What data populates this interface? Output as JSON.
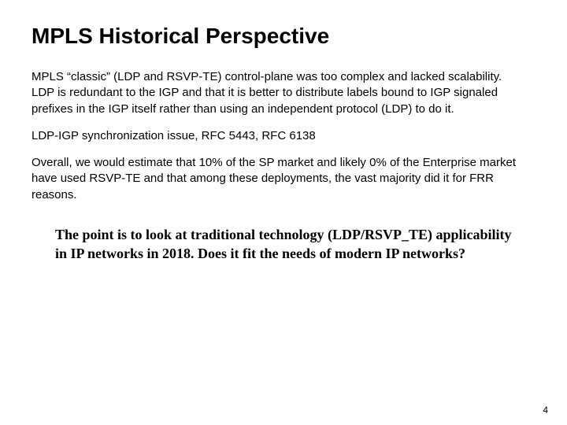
{
  "title": "MPLS Historical Perspective",
  "title_fontsize": 28,
  "paragraphs": [
    "MPLS “classic” (LDP and RSVP-TE) control-plane was too complex and lacked scalability.\nLDP is redundant to the IGP and that it is better to distribute labels bound to IGP signaled prefixes in the IGP itself rather than using an independent protocol (LDP) to do it.",
    "LDP-IGP synchronization issue, RFC 5443, RFC 6138",
    "Overall, we would estimate that 10% of the SP market and likely 0% of the Enterprise market have used RSVP-TE and that among these deployments, the vast majority did it for FRR reasons."
  ],
  "body_fontsize": 15,
  "emphasis_text": "The point is to look at traditional technology (LDP/RSVP_TE) applicability in IP networks in 2018. Does it fit the needs of modern IP networks?",
  "emphasis_fontsize": 18,
  "page_number": "4",
  "background_color": "#ffffff",
  "text_color": "#000000"
}
